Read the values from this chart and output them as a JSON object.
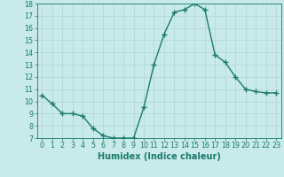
{
  "x": [
    0,
    1,
    2,
    3,
    4,
    5,
    6,
    7,
    8,
    9,
    10,
    11,
    12,
    13,
    14,
    15,
    16,
    17,
    18,
    19,
    20,
    21,
    22,
    23
  ],
  "y": [
    10.5,
    9.8,
    9.0,
    9.0,
    8.8,
    7.8,
    7.2,
    7.0,
    7.0,
    7.0,
    9.5,
    13.0,
    15.5,
    17.3,
    17.5,
    18.0,
    17.5,
    13.8,
    13.2,
    12.0,
    11.0,
    10.8,
    10.7,
    10.7
  ],
  "line_color": "#1a7a6e",
  "marker": "+",
  "marker_size": 4,
  "xlabel": "Humidex (Indice chaleur)",
  "xlim": [
    -0.5,
    23.5
  ],
  "ylim": [
    7,
    18
  ],
  "yticks": [
    7,
    8,
    9,
    10,
    11,
    12,
    13,
    14,
    15,
    16,
    17,
    18
  ],
  "xticks": [
    0,
    1,
    2,
    3,
    4,
    5,
    6,
    7,
    8,
    9,
    10,
    11,
    12,
    13,
    14,
    15,
    16,
    17,
    18,
    19,
    20,
    21,
    22,
    23
  ],
  "bg_color": "#c8eae8",
  "grid_color": "#b8d8d5",
  "font_color": "#1a7a6e",
  "tick_label_size": 5.8,
  "xlabel_size": 7.0
}
